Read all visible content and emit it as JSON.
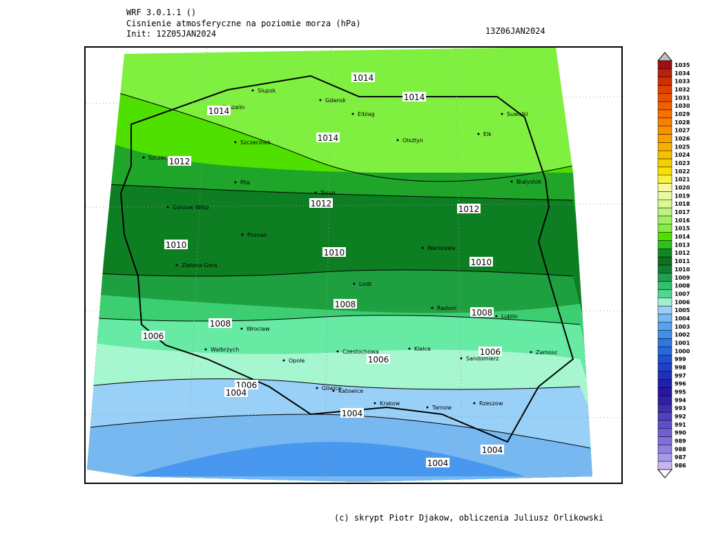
{
  "header": {
    "model": "WRF 3.0.1.1 ()",
    "title": "Cisnienie atmosferyczne na poziomie morza (hPa)",
    "init": "Init: 12Z05JAN2024",
    "valid": "13Z06JAN2024"
  },
  "cities": [
    "Slupsk",
    "Koszalin",
    "Gdansk",
    "Elblag",
    "Suwalki",
    "Szczecinek",
    "Olsztyn",
    "Elk",
    "Szczecin",
    "Pila",
    "Torun",
    "Bialystok",
    "Gorzow Wlkp",
    "Poznan",
    "Warszawa",
    "Zielona Gora",
    "Lodz",
    "Radom",
    "Lublin",
    "Wroclaw",
    "Walbrzych",
    "Opole",
    "Czestochowa",
    "Kielce",
    "Sandomierz",
    "Zamosc",
    "Gliwice",
    "Katowice",
    "Krakow",
    "Tarnow",
    "Rzeszow"
  ],
  "contour_labels": [
    "1014",
    "1014",
    "1014",
    "1014",
    "1012",
    "1012",
    "1012",
    "1010",
    "1010",
    "1010",
    "1008",
    "1008",
    "1008",
    "1006",
    "1006",
    "1006",
    "1006",
    "1004",
    "1004",
    "1004",
    "1004"
  ],
  "colorbar": {
    "labels": [
      1035,
      1034,
      1033,
      1032,
      1031,
      1030,
      1029,
      1028,
      1027,
      1026,
      1025,
      1024,
      1023,
      1022,
      1021,
      1020,
      1019,
      1018,
      1017,
      1016,
      1015,
      1014,
      1013,
      1012,
      1011,
      1010,
      1009,
      1008,
      1007,
      1006,
      1005,
      1004,
      1003,
      1002,
      1001,
      1000,
      999,
      998,
      997,
      996,
      995,
      994,
      993,
      992,
      991,
      990,
      989,
      988,
      987,
      986
    ],
    "colors": [
      "#a01010",
      "#b82010",
      "#d03000",
      "#e04000",
      "#e85000",
      "#f06000",
      "#f87000",
      "#f88000",
      "#f89000",
      "#f8a000",
      "#f8b000",
      "#f8c000",
      "#f8d000",
      "#f8e000",
      "#f8f040",
      "#f8f8a0",
      "#e8f8a0",
      "#d8f890",
      "#c0f080",
      "#a0f060",
      "#80f040",
      "#50e000",
      "#30c020",
      "#108a20",
      "#107020",
      "#108030",
      "#20a050",
      "#30c070",
      "#50d890",
      "#a0f0d0",
      "#98d0f8",
      "#78b8f0",
      "#58a0f0",
      "#4090e8",
      "#3078e0",
      "#2868d8",
      "#2050d0",
      "#2040c8",
      "#2030b8",
      "#2020a8",
      "#2818a0",
      "#3020a8",
      "#4030b0",
      "#5040c0",
      "#6050c8",
      "#7060d0",
      "#8070d8",
      "#9080e0",
      "#a898e8",
      "#c8b4f0"
    ]
  },
  "footer": "(c) skrypt Piotr Djakow, obliczenia Juliusz Orlikowski"
}
